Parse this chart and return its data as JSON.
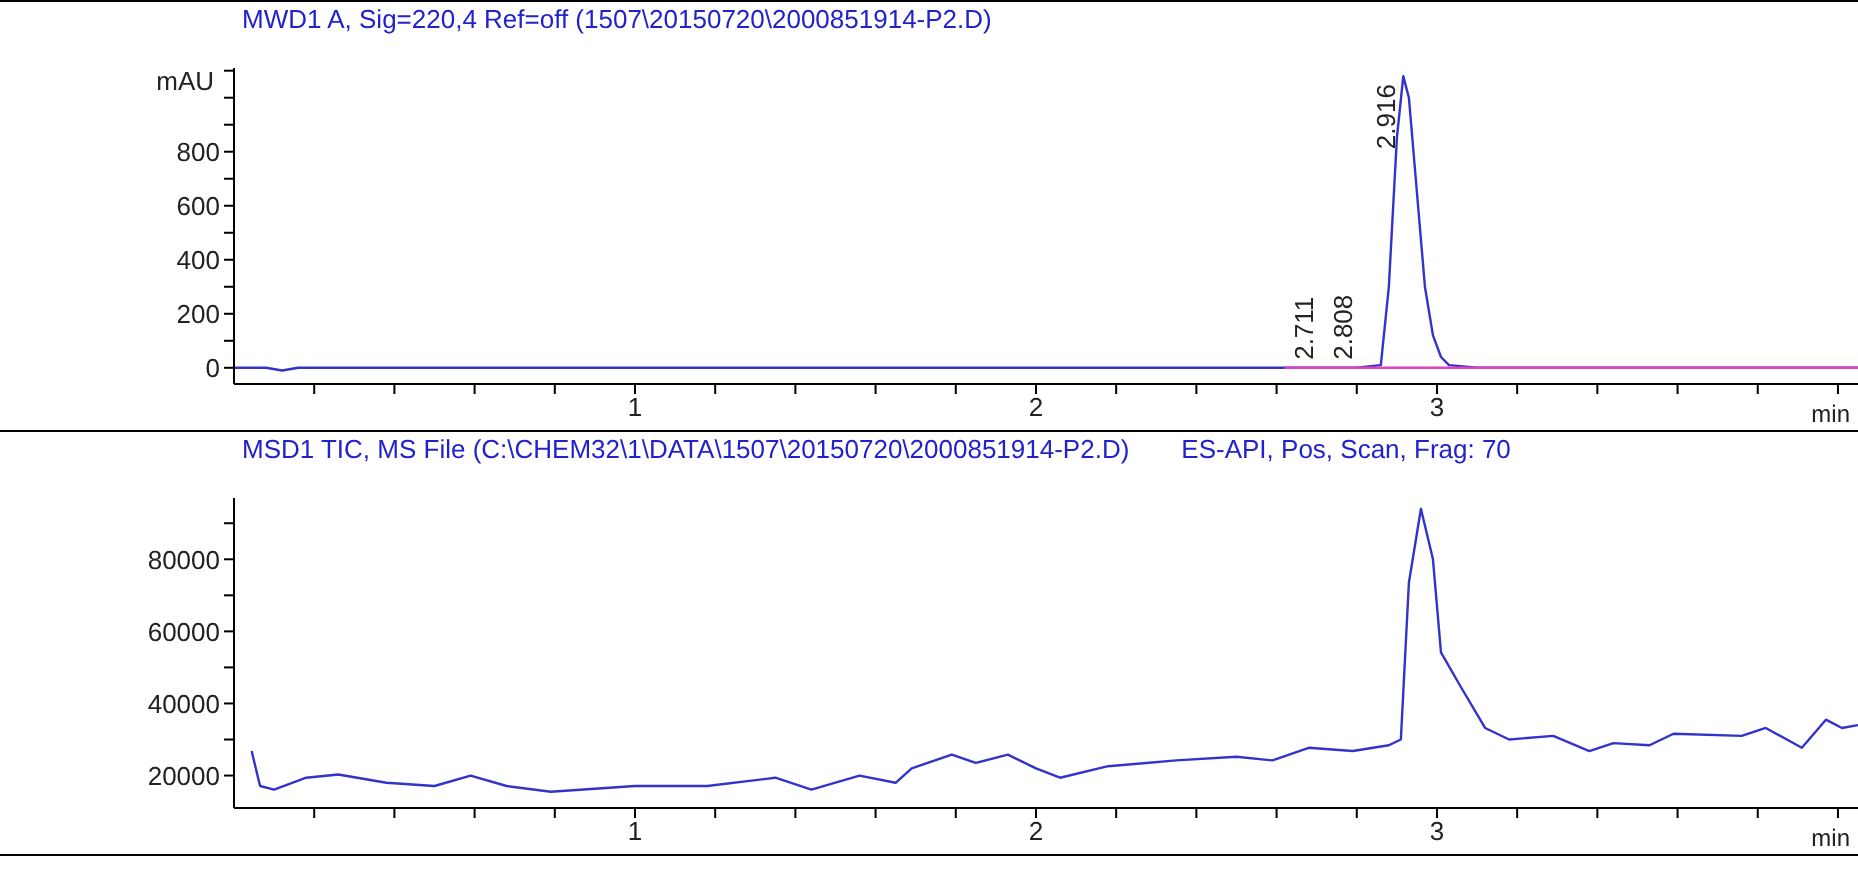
{
  "chart_data": [
    {
      "type": "line",
      "title": "MWD1 A, Sig=220,4 Ref=off (1507\\20150720\\2000851914-P2.D)",
      "xlabel": "min",
      "ylabel": "mAU",
      "xlim": [
        0,
        4.05
      ],
      "ylim": [
        -60,
        1110
      ],
      "xticks": [
        {
          "value": 0.2,
          "label": null
        },
        {
          "value": 0.4,
          "label": null
        },
        {
          "value": 0.6,
          "label": null
        },
        {
          "value": 0.8,
          "label": null
        },
        1,
        {
          "value": 1.2,
          "label": null
        },
        {
          "value": 1.4,
          "label": null
        },
        {
          "value": 1.6,
          "label": null
        },
        {
          "value": 1.8,
          "label": null
        },
        2,
        {
          "value": 2.2,
          "label": null
        },
        {
          "value": 2.4,
          "label": null
        },
        {
          "value": 2.6,
          "label": null
        },
        {
          "value": 2.8,
          "label": null
        },
        3,
        {
          "value": 3.2,
          "label": null
        },
        {
          "value": 3.4,
          "label": null
        },
        {
          "value": 3.6,
          "label": null
        },
        {
          "value": 3.8,
          "label": null
        },
        {
          "value": 4,
          "label": null
        }
      ],
      "yticks": [
        0,
        {
          "value": 100,
          "label": null
        },
        200,
        {
          "value": 300,
          "label": null
        },
        400,
        {
          "value": 500,
          "label": null
        },
        600,
        {
          "value": 700,
          "label": null
        },
        800,
        {
          "value": 900,
          "label": null
        },
        {
          "value": 1000,
          "label": null
        },
        {
          "value": 1100,
          "label": null
        }
      ],
      "series": [
        {
          "color": "#3333cc",
          "x": [
            0,
            0.08,
            0.12,
            0.16,
            0.3,
            1,
            2,
            2.5,
            2.8,
            2.86,
            2.88,
            2.9,
            2.916,
            2.93,
            2.95,
            2.97,
            2.99,
            3.01,
            3.03,
            3.1,
            3.5,
            4.05
          ],
          "values": [
            0,
            0,
            -10,
            0,
            0,
            0,
            0,
            0,
            0,
            10,
            300,
            850,
            1080,
            1000,
            650,
            300,
            120,
            40,
            10,
            0,
            0,
            0
          ]
        },
        {
          "color": "#e040c0",
          "x": [
            2.62,
            4.05
          ],
          "values": [
            0,
            0
          ]
        }
      ],
      "annotations": [
        {
          "text": "2.711",
          "x": 2.711,
          "y": 0
        },
        {
          "text": "2.808",
          "x": 2.808,
          "y": 0
        },
        {
          "text": "2.916",
          "x": 2.916,
          "y": 1080
        }
      ]
    },
    {
      "type": "line",
      "title": "MSD1 TIC, MS File (C:\\CHEM32\\1\\DATA\\1507\\20150720\\2000851914-P2.D)",
      "subtitle": "ES-API, Pos, Scan, Frag: 70",
      "xlabel": "min",
      "xlim": [
        0,
        4.05
      ],
      "ylim": [
        11000,
        97000
      ],
      "xticks": [
        {
          "value": 0.2,
          "label": null
        },
        {
          "value": 0.4,
          "label": null
        },
        {
          "value": 0.6,
          "label": null
        },
        {
          "value": 0.8,
          "label": null
        },
        1,
        {
          "value": 1.2,
          "label": null
        },
        {
          "value": 1.4,
          "label": null
        },
        {
          "value": 1.6,
          "label": null
        },
        {
          "value": 1.8,
          "label": null
        },
        2,
        {
          "value": 2.2,
          "label": null
        },
        {
          "value": 2.4,
          "label": null
        },
        {
          "value": 2.6,
          "label": null
        },
        {
          "value": 2.8,
          "label": null
        },
        3,
        {
          "value": 3.2,
          "label": null
        },
        {
          "value": 3.4,
          "label": null
        },
        {
          "value": 3.6,
          "label": null
        },
        {
          "value": 3.8,
          "label": null
        },
        {
          "value": 4,
          "label": null
        }
      ],
      "yticks": [
        20000,
        {
          "value": 30000,
          "label": null
        },
        40000,
        {
          "value": 50000,
          "label": null
        },
        60000,
        {
          "value": 70000,
          "label": null
        },
        80000,
        {
          "value": 90000,
          "label": null
        }
      ],
      "series": [
        {
          "color": "#3333cc",
          "x": [
            0.044,
            0.065,
            0.1,
            0.18,
            0.26,
            0.38,
            0.5,
            0.59,
            0.68,
            0.79,
            1,
            1.18,
            1.35,
            1.44,
            1.56,
            1.65,
            1.69,
            1.79,
            1.85,
            1.93,
            2,
            2.06,
            2.18,
            2.35,
            2.5,
            2.59,
            2.68,
            2.79,
            2.88,
            2.91,
            2.93,
            2.96,
            2.99,
            3.01,
            3.06,
            3.12,
            3.18,
            3.29,
            3.38,
            3.44,
            3.53,
            3.59,
            3.76,
            3.82,
            3.91,
            3.97,
            4.01,
            4.05
          ],
          "values": [
            26800,
            17100,
            16100,
            19400,
            20300,
            18000,
            17100,
            20000,
            17100,
            15500,
            17100,
            17100,
            19400,
            16100,
            20000,
            18000,
            22000,
            25800,
            23500,
            25800,
            22000,
            19400,
            22600,
            24200,
            25200,
            24200,
            27700,
            26800,
            28400,
            30000,
            73500,
            94000,
            80000,
            54200,
            44500,
            33200,
            30000,
            31000,
            26800,
            29000,
            28400,
            31600,
            31000,
            33200,
            27700,
            35500,
            33200,
            34000
          ]
        }
      ]
    }
  ]
}
